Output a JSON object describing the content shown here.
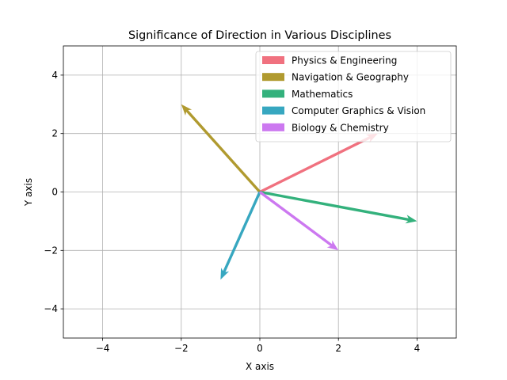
{
  "chart_data": {
    "type": "quiver",
    "title": "Significance of Direction in Various Disciplines",
    "xlabel": "X axis",
    "ylabel": "Y axis",
    "xlim": [
      -5,
      5
    ],
    "ylim": [
      -5,
      5
    ],
    "xticks": [
      -4,
      -2,
      0,
      2,
      4
    ],
    "yticks": [
      -4,
      -2,
      0,
      2,
      4
    ],
    "xtick_labels": [
      "−4",
      "−2",
      "0",
      "2",
      "4"
    ],
    "ytick_labels": [
      "−4",
      "−2",
      "0",
      "2",
      "4"
    ],
    "grid": true,
    "legend_position": "top-right",
    "series": [
      {
        "name": "Physics & Engineering",
        "origin": [
          0,
          0
        ],
        "vector": [
          3,
          2
        ],
        "color": "#f0717f"
      },
      {
        "name": "Navigation & Geography",
        "origin": [
          0,
          0
        ],
        "vector": [
          -2,
          3
        ],
        "color": "#b09a2f"
      },
      {
        "name": "Mathematics",
        "origin": [
          0,
          0
        ],
        "vector": [
          4,
          -1
        ],
        "color": "#33b17c"
      },
      {
        "name": "Computer Graphics & Vision",
        "origin": [
          0,
          0
        ],
        "vector": [
          -1,
          -3
        ],
        "color": "#37a7c0"
      },
      {
        "name": "Biology & Chemistry",
        "origin": [
          0,
          0
        ],
        "vector": [
          2,
          -2
        ],
        "color": "#cc78f0"
      }
    ]
  }
}
